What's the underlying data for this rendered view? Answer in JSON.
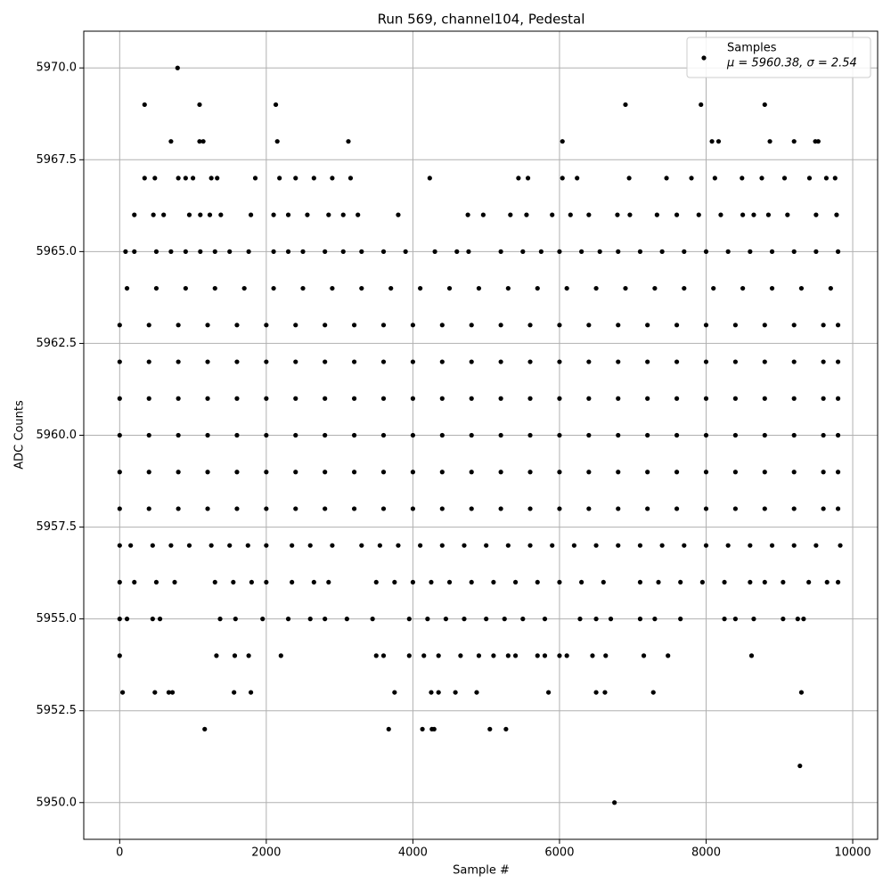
{
  "chart_data": {
    "type": "scatter",
    "title": "Run 569, channel104, Pedestal",
    "x_label": "Sample #",
    "y_label": "ADC Counts",
    "legend_note": "μ = 5960.38, σ = 2.54",
    "legend": "upper right",
    "grid": true,
    "xlim": [
      -490,
      10340
    ],
    "ylim": [
      5949.0,
      5971.0
    ],
    "xticks": [
      0,
      2000,
      4000,
      6000,
      8000,
      10000
    ],
    "yticks": [
      {
        "value": 5950,
        "label": "5950.0"
      },
      5952.5,
      {
        "value": 5955,
        "label": "5955.0"
      },
      5957.5,
      {
        "value": 5960,
        "label": "5960.0"
      },
      5962.5,
      {
        "value": 5965,
        "label": "5965.0"
      },
      5967.5,
      {
        "value": 5970,
        "label": "5970.0"
      }
    ],
    "x": [
      790,
      340,
      1090,
      2130,
      6900,
      7930,
      8800,
      700,
      1090,
      1140,
      2150,
      3120,
      6040,
      8080,
      8170,
      8870,
      9200,
      9490,
      9530,
      340,
      480,
      800,
      900,
      1000,
      1250,
      1330,
      1850,
      2180,
      2400,
      2650,
      2900,
      3150,
      4230,
      5440,
      5570,
      6040,
      6240,
      6950,
      7460,
      7800,
      8120,
      8490,
      8760,
      9070,
      9410,
      9640,
      9760,
      200,
      460,
      600,
      950,
      1100,
      1230,
      1380,
      1790,
      2100,
      2300,
      2560,
      2850,
      3050,
      3250,
      3800,
      4750,
      4960,
      5330,
      5550,
      5900,
      6150,
      6400,
      6790,
      6960,
      7330,
      7600,
      7900,
      8200,
      8500,
      8650,
      8850,
      9110,
      9500,
      9780,
      80,
      200,
      500,
      700,
      900,
      1100,
      1300,
      1500,
      1760,
      2100,
      2300,
      2500,
      2800,
      3050,
      3300,
      3600,
      3900,
      4300,
      4600,
      4760,
      5200,
      5500,
      5750,
      6000,
      6300,
      6550,
      6800,
      7100,
      7400,
      7700,
      8000,
      8300,
      8600,
      8900,
      9200,
      9500,
      9800,
      100,
      500,
      900,
      1300,
      1700,
      2100,
      2500,
      2900,
      3300,
      3700,
      4100,
      4500,
      4900,
      5300,
      5700,
      6100,
      6500,
      6900,
      7300,
      7700,
      8100,
      8500,
      8900,
      9300,
      9700,
      0,
      400,
      800,
      1200,
      1600,
      2000,
      2400,
      2800,
      3200,
      3600,
      4000,
      4400,
      4800,
      5200,
      5600,
      6000,
      6400,
      6800,
      7200,
      7600,
      8000,
      8400,
      8800,
      9200,
      9600,
      9800,
      0,
      400,
      800,
      1200,
      1600,
      2000,
      2400,
      2800,
      3200,
      3600,
      4000,
      4400,
      4800,
      5200,
      5600,
      6000,
      6400,
      6800,
      7200,
      7600,
      8000,
      8400,
      8800,
      9200,
      9600,
      9800,
      0,
      400,
      800,
      1200,
      1600,
      2000,
      2400,
      2800,
      3200,
      3600,
      4000,
      4400,
      4800,
      5200,
      5600,
      6000,
      6400,
      6800,
      7200,
      7600,
      8000,
      8400,
      8800,
      9200,
      9600,
      9800,
      0,
      400,
      800,
      1200,
      1600,
      2000,
      2400,
      2800,
      3200,
      3600,
      4000,
      4400,
      4800,
      5200,
      5600,
      6000,
      6400,
      6800,
      7200,
      7600,
      8000,
      8400,
      8800,
      9200,
      9600,
      9800,
      0,
      400,
      800,
      1200,
      1600,
      2000,
      2400,
      2800,
      3200,
      3600,
      4000,
      4400,
      4800,
      5200,
      5600,
      6000,
      6400,
      6800,
      7200,
      7600,
      8000,
      8400,
      8800,
      9200,
      9600,
      9800,
      0,
      400,
      800,
      1200,
      1600,
      2000,
      2400,
      2800,
      3200,
      3600,
      4000,
      4400,
      4800,
      5200,
      5600,
      6000,
      6400,
      6800,
      7200,
      7600,
      8000,
      8400,
      8800,
      9200,
      9600,
      9800,
      0,
      150,
      450,
      700,
      950,
      1250,
      1500,
      1750,
      2000,
      2350,
      2600,
      2900,
      3300,
      3550,
      3800,
      4100,
      4400,
      4700,
      5000,
      5300,
      5600,
      5900,
      6200,
      6500,
      6800,
      7100,
      7400,
      7700,
      8000,
      8300,
      8600,
      8900,
      9200,
      9500,
      9830,
      0,
      200,
      500,
      750,
      1300,
      1550,
      1800,
      2000,
      2350,
      2650,
      2850,
      3500,
      3750,
      4000,
      4250,
      4500,
      4800,
      5100,
      5400,
      5700,
      6000,
      6300,
      6600,
      7100,
      7350,
      7650,
      7950,
      8250,
      8600,
      8800,
      9050,
      9400,
      9650,
      9800,
      0,
      100,
      450,
      550,
      1370,
      1580,
      1950,
      2300,
      2600,
      2800,
      3100,
      3450,
      3950,
      4200,
      4450,
      4700,
      5000,
      5250,
      5500,
      5800,
      6280,
      6500,
      6700,
      7100,
      7300,
      7650,
      8250,
      8400,
      8650,
      9050,
      9250,
      9330,
      0,
      1320,
      1570,
      1760,
      2200,
      3500,
      3600,
      3950,
      4150,
      4350,
      4650,
      4900,
      5100,
      5300,
      5400,
      5700,
      5800,
      6000,
      6100,
      6450,
      6630,
      7150,
      7480,
      8620,
      40,
      480,
      670,
      720,
      1560,
      1790,
      3750,
      4250,
      4350,
      4580,
      4870,
      5850,
      6500,
      6620,
      7280,
      9300,
      1160,
      3670,
      4130,
      4260,
      4290,
      5050,
      5270,
      9280,
      6750
    ],
    "series": [
      {
        "name": "Samples",
        "color": "#000000",
        "values": [
          5970,
          5969,
          5969,
          5969,
          5969,
          5969,
          5969,
          5968,
          5968,
          5968,
          5968,
          5968,
          5968,
          5968,
          5968,
          5968,
          5968,
          5968,
          5968,
          5967,
          5967,
          5967,
          5967,
          5967,
          5967,
          5967,
          5967,
          5967,
          5967,
          5967,
          5967,
          5967,
          5967,
          5967,
          5967,
          5967,
          5967,
          5967,
          5967,
          5967,
          5967,
          5967,
          5967,
          5967,
          5967,
          5967,
          5967,
          5966,
          5966,
          5966,
          5966,
          5966,
          5966,
          5966,
          5966,
          5966,
          5966,
          5966,
          5966,
          5966,
          5966,
          5966,
          5966,
          5966,
          5966,
          5966,
          5966,
          5966,
          5966,
          5966,
          5966,
          5966,
          5966,
          5966,
          5966,
          5966,
          5966,
          5966,
          5966,
          5966,
          5966,
          5965,
          5965,
          5965,
          5965,
          5965,
          5965,
          5965,
          5965,
          5965,
          5965,
          5965,
          5965,
          5965,
          5965,
          5965,
          5965,
          5965,
          5965,
          5965,
          5965,
          5965,
          5965,
          5965,
          5965,
          5965,
          5965,
          5965,
          5965,
          5965,
          5965,
          5965,
          5965,
          5965,
          5965,
          5965,
          5965,
          5965,
          5964,
          5964,
          5964,
          5964,
          5964,
          5964,
          5964,
          5964,
          5964,
          5964,
          5964,
          5964,
          5964,
          5964,
          5964,
          5964,
          5964,
          5964,
          5964,
          5964,
          5964,
          5964,
          5964,
          5964,
          5964,
          5963,
          5963,
          5963,
          5963,
          5963,
          5963,
          5963,
          5963,
          5963,
          5963,
          5963,
          5963,
          5963,
          5963,
          5963,
          5963,
          5963,
          5963,
          5963,
          5963,
          5963,
          5963,
          5963,
          5963,
          5963,
          5963,
          5962,
          5962,
          5962,
          5962,
          5962,
          5962,
          5962,
          5962,
          5962,
          5962,
          5962,
          5962,
          5962,
          5962,
          5962,
          5962,
          5962,
          5962,
          5962,
          5962,
          5962,
          5962,
          5962,
          5962,
          5962,
          5962,
          5961,
          5961,
          5961,
          5961,
          5961,
          5961,
          5961,
          5961,
          5961,
          5961,
          5961,
          5961,
          5961,
          5961,
          5961,
          5961,
          5961,
          5961,
          5961,
          5961,
          5961,
          5961,
          5961,
          5961,
          5961,
          5961,
          5960,
          5960,
          5960,
          5960,
          5960,
          5960,
          5960,
          5960,
          5960,
          5960,
          5960,
          5960,
          5960,
          5960,
          5960,
          5960,
          5960,
          5960,
          5960,
          5960,
          5960,
          5960,
          5960,
          5960,
          5960,
          5960,
          5959,
          5959,
          5959,
          5959,
          5959,
          5959,
          5959,
          5959,
          5959,
          5959,
          5959,
          5959,
          5959,
          5959,
          5959,
          5959,
          5959,
          5959,
          5959,
          5959,
          5959,
          5959,
          5959,
          5959,
          5959,
          5959,
          5958,
          5958,
          5958,
          5958,
          5958,
          5958,
          5958,
          5958,
          5958,
          5958,
          5958,
          5958,
          5958,
          5958,
          5958,
          5958,
          5958,
          5958,
          5958,
          5958,
          5958,
          5958,
          5958,
          5958,
          5958,
          5958,
          5957,
          5957,
          5957,
          5957,
          5957,
          5957,
          5957,
          5957,
          5957,
          5957,
          5957,
          5957,
          5957,
          5957,
          5957,
          5957,
          5957,
          5957,
          5957,
          5957,
          5957,
          5957,
          5957,
          5957,
          5957,
          5957,
          5957,
          5957,
          5957,
          5957,
          5957,
          5957,
          5957,
          5957,
          5957,
          5956,
          5956,
          5956,
          5956,
          5956,
          5956,
          5956,
          5956,
          5956,
          5956,
          5956,
          5956,
          5956,
          5956,
          5956,
          5956,
          5956,
          5956,
          5956,
          5956,
          5956,
          5956,
          5956,
          5956,
          5956,
          5956,
          5956,
          5956,
          5956,
          5956,
          5956,
          5956,
          5956,
          5956,
          5955,
          5955,
          5955,
          5955,
          5955,
          5955,
          5955,
          5955,
          5955,
          5955,
          5955,
          5955,
          5955,
          5955,
          5955,
          5955,
          5955,
          5955,
          5955,
          5955,
          5955,
          5955,
          5955,
          5955,
          5955,
          5955,
          5955,
          5955,
          5955,
          5955,
          5955,
          5955,
          5954,
          5954,
          5954,
          5954,
          5954,
          5954,
          5954,
          5954,
          5954,
          5954,
          5954,
          5954,
          5954,
          5954,
          5954,
          5954,
          5954,
          5954,
          5954,
          5954,
          5954,
          5954,
          5954,
          5954,
          5953,
          5953,
          5953,
          5953,
          5953,
          5953,
          5953,
          5953,
          5953,
          5953,
          5953,
          5953,
          5953,
          5953,
          5953,
          5953,
          5952,
          5952,
          5952,
          5952,
          5952,
          5952,
          5952,
          5951,
          5950
        ]
      }
    ]
  }
}
